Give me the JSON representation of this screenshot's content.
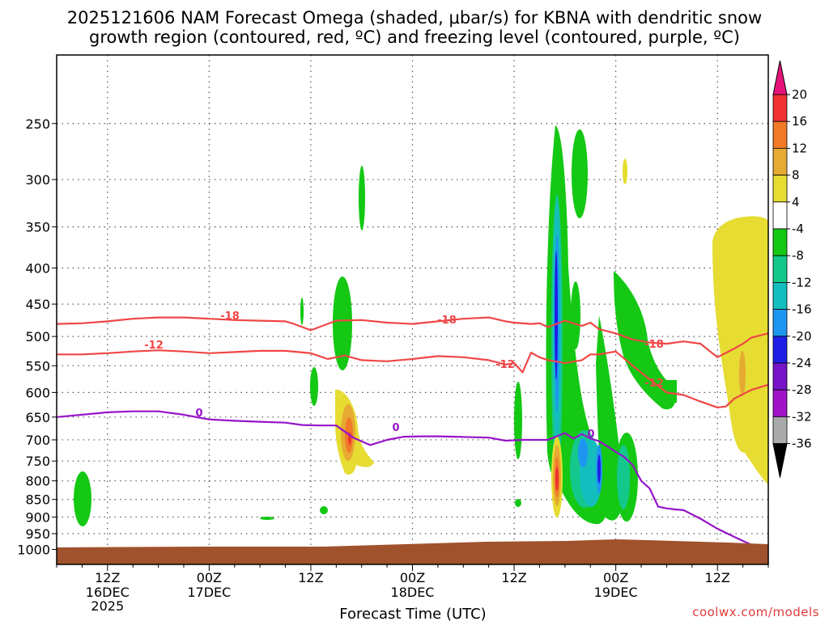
{
  "chart_data": {
    "type": "contour",
    "title_line1": "2025121606 NAM Forecast Omega (shaded, μbar/s) for KBNA with dendritic snow",
    "title_line2": "growth region (contoured, red, ºC) and freezing level (contoured, purple, ºC)",
    "xlabel": "Forecast Time (UTC)",
    "credit": "coolwx.com/models",
    "pressure_ticks": [
      250,
      300,
      350,
      400,
      450,
      500,
      550,
      600,
      650,
      700,
      750,
      800,
      850,
      900,
      950,
      1000
    ],
    "time_ticks": [
      {
        "label": "12Z",
        "date": "16DEC",
        "year": "2025",
        "hour": 6
      },
      {
        "label": "00Z",
        "date": "17DEC",
        "year": "",
        "hour": 18
      },
      {
        "label": "12Z",
        "date": "",
        "year": "",
        "hour": 30
      },
      {
        "label": "00Z",
        "date": "18DEC",
        "year": "",
        "hour": 42
      },
      {
        "label": "12Z",
        "date": "",
        "year": "",
        "hour": 54
      },
      {
        "label": "00Z",
        "date": "19DEC",
        "year": "",
        "hour": 66
      },
      {
        "label": "12Z",
        "date": "",
        "year": "",
        "hour": 78
      }
    ],
    "colorbar": {
      "labels": [
        "20",
        "16",
        "12",
        "8",
        "4",
        "-4",
        "-8",
        "-12",
        "-16",
        "-20",
        "-24",
        "-28",
        "-32",
        "-36"
      ],
      "colors": [
        "#f03232",
        "#f07a28",
        "#e6aa32",
        "#e6dc32",
        "#ffffff",
        "#14c814",
        "#14c88c",
        "#14bebe",
        "#1e96f0",
        "#1e1ee6",
        "#7814c8",
        "#a014c8",
        "#aaaaaa"
      ],
      "top_cap": "#e6147a",
      "bottom_cap": "#000000"
    },
    "contour_labels": {
      "red": [
        "-18",
        "-18",
        "-18",
        "-12",
        "-12",
        "-12"
      ],
      "purple": [
        "0",
        "0",
        "0"
      ]
    },
    "colors": {
      "red_contour": "#f04646",
      "purple_contour": "#9614c8",
      "ground": "#a0522d"
    },
    "series": [
      {
        "name": "-18",
        "x": [
          0,
          3,
          6,
          9,
          12,
          15,
          18,
          21,
          24,
          27,
          28,
          30,
          33,
          36,
          39,
          42,
          45,
          48,
          51,
          53,
          54,
          56,
          57,
          58,
          60,
          62,
          63,
          64,
          66,
          68,
          70,
          72,
          74,
          76,
          78,
          80,
          81,
          82,
          84
        ],
        "y": [
          480,
          479,
          476,
          472,
          470,
          470,
          472,
          474,
          475,
          476,
          480,
          490,
          475,
          474,
          478,
          480,
          476,
          472,
          470,
          476,
          478,
          480,
          479,
          485,
          475,
          483,
          478,
          488,
          495,
          505,
          510,
          512,
          508,
          512,
          535,
          520,
          512,
          502,
          495
        ]
      },
      {
        "name": "-12",
        "x": [
          0,
          3,
          6,
          9,
          12,
          15,
          18,
          21,
          24,
          27,
          30,
          32,
          34,
          36,
          39,
          42,
          45,
          48,
          51,
          53,
          54,
          55,
          56,
          57,
          58,
          60,
          62,
          63,
          64,
          66,
          68,
          70,
          72,
          74,
          76,
          78,
          79,
          80,
          82,
          84
        ],
        "y": [
          530,
          530,
          528,
          525,
          523,
          525,
          528,
          526,
          524,
          524,
          528,
          538,
          532,
          540,
          542,
          538,
          533,
          535,
          540,
          548,
          545,
          562,
          527,
          535,
          540,
          545,
          540,
          530,
          530,
          525,
          550,
          575,
          600,
          605,
          618,
          630,
          628,
          612,
          595,
          585
        ]
      },
      {
        "name": "0",
        "x": [
          0,
          3,
          6,
          9,
          12,
          15,
          18,
          21,
          24,
          27,
          29,
          31,
          33,
          35,
          37,
          39,
          41,
          43,
          45,
          47,
          49,
          51,
          53,
          55,
          57,
          58,
          59,
          60,
          61,
          62,
          63,
          64,
          65,
          66,
          67,
          68,
          69,
          70,
          71,
          72,
          73,
          74,
          76,
          78,
          80,
          82,
          84
        ],
        "y": [
          650,
          645,
          640,
          638,
          638,
          645,
          655,
          658,
          660,
          662,
          667,
          668,
          668,
          695,
          712,
          700,
          693,
          692,
          692,
          693,
          694,
          695,
          702,
          700,
          700,
          700,
          692,
          685,
          697,
          687,
          697,
          703,
          715,
          728,
          740,
          760,
          800,
          820,
          870,
          875,
          878,
          880,
          905,
          935,
          960,
          985,
          990
        ]
      }
    ]
  }
}
